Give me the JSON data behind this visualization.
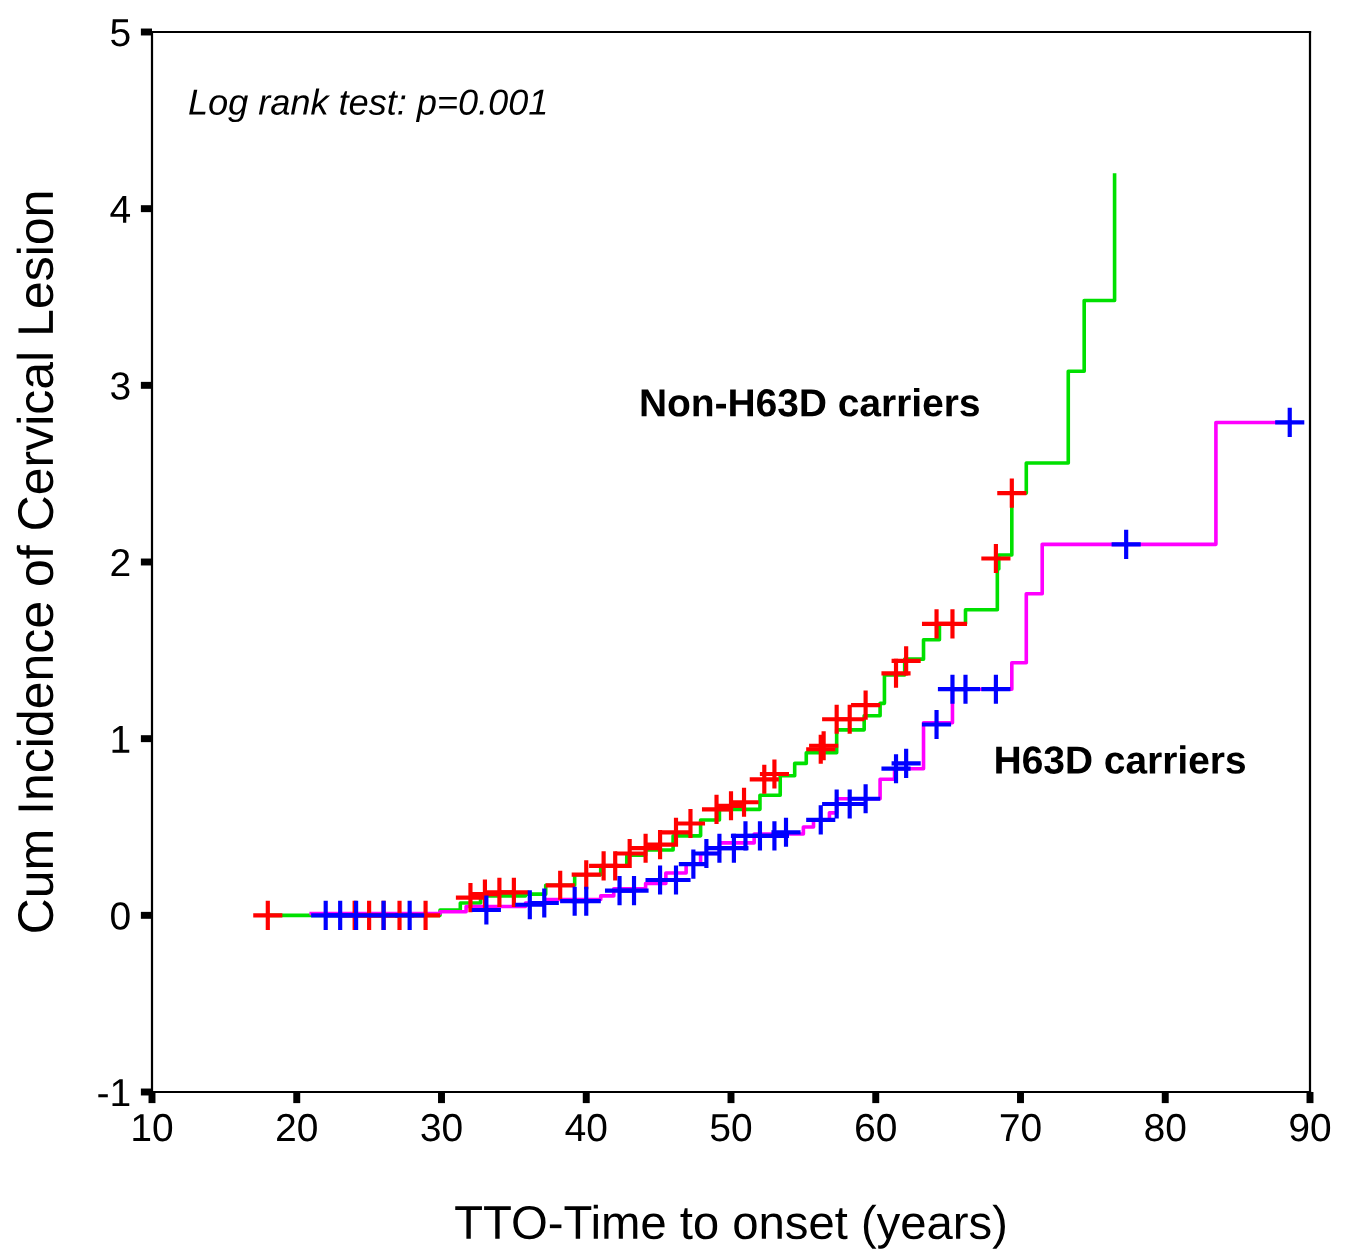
{
  "chart_data": {
    "type": "step",
    "xlabel": "TTO-Time to onset (years)",
    "ylabel": "Cum Incidence of Cervical Lesion",
    "xlim": [
      10,
      90
    ],
    "xticks": [
      10,
      20,
      30,
      40,
      50,
      60,
      70,
      80,
      90
    ],
    "ylim": [
      -1,
      5
    ],
    "yticks": [
      -1,
      0,
      1,
      2,
      3,
      4,
      5
    ],
    "grid": false,
    "legend": false,
    "annotations": [
      "Log rank test: p=0.001"
    ],
    "series": [
      {
        "type": "step",
        "name": "Non-H63D carriers",
        "color": "#00e000",
        "marker": "none",
        "x": [
          18,
          29.9,
          31.3,
          32.7,
          35.8,
          37.2,
          39.2,
          41,
          42.8,
          44.1,
          46,
          47.9,
          49.2,
          52,
          53.4,
          54.4,
          55.2,
          57.3,
          59.2,
          60.3,
          60.6,
          62,
          63.3,
          64.4,
          66.2,
          68.4,
          68.5,
          69.4,
          70.4,
          73.3,
          74.4,
          76.5
        ],
        "values": [
          0,
          0.03,
          0.07,
          0.11,
          0.12,
          0.17,
          0.23,
          0.28,
          0.34,
          0.37,
          0.45,
          0.54,
          0.6,
          0.68,
          0.79,
          0.86,
          0.92,
          1.05,
          1.13,
          1.2,
          1.36,
          1.45,
          1.56,
          1.65,
          1.73,
          1.96,
          2.04,
          2.39,
          2.56,
          3.08,
          3.48,
          4.19
        ]
      },
      {
        "type": "step",
        "name": "H63D carriers",
        "color": "#ff00ff",
        "marker": "none",
        "x": [
          21,
          29.9,
          31.7,
          35.8,
          37.2,
          41,
          41.9,
          44.1,
          45.5,
          46.9,
          47.9,
          49.2,
          51.6,
          55,
          55.7,
          56.8,
          57.3,
          60.3,
          61.3,
          63.3,
          65.3,
          69.4,
          70.4,
          71.5,
          83.5,
          88.6
        ],
        "values": [
          0.01,
          0.02,
          0.05,
          0.07,
          0.09,
          0.11,
          0.15,
          0.18,
          0.24,
          0.29,
          0.35,
          0.41,
          0.46,
          0.5,
          0.54,
          0.58,
          0.66,
          0.77,
          0.83,
          1.09,
          1.28,
          1.43,
          1.82,
          2.1,
          2.79,
          2.79
        ]
      },
      {
        "type": "scatter",
        "color": "#ff0000",
        "marker": "cross",
        "x": [
          18,
          24,
          25,
          26,
          27.1,
          28.9,
          32,
          33,
          34,
          35,
          38.2,
          40,
          41.2,
          42,
          43,
          44.1,
          45.1,
          46.2,
          47.2,
          49,
          50,
          50.9,
          52.3,
          53,
          56.2,
          56.4,
          57.3,
          58.2,
          59.3,
          61.4,
          62.1,
          64.2,
          65.3,
          68.3,
          69.4
        ],
        "values": [
          0,
          0,
          0,
          0,
          0,
          0,
          0.1,
          0.12,
          0.13,
          0.13,
          0.17,
          0.23,
          0.28,
          0.28,
          0.35,
          0.38,
          0.4,
          0.47,
          0.52,
          0.6,
          0.62,
          0.64,
          0.77,
          0.8,
          0.94,
          0.96,
          1.11,
          1.11,
          1.19,
          1.37,
          1.44,
          1.65,
          1.65,
          2.02,
          2.39
        ]
      },
      {
        "type": "scatter",
        "color": "#0000ff",
        "marker": "cross",
        "x": [
          22,
          23,
          24.1,
          26,
          27.8,
          33.1,
          36.1,
          37.1,
          39.2,
          40,
          42.3,
          43.3,
          45.1,
          46.2,
          47.4,
          48.3,
          49.2,
          50.2,
          51,
          52,
          53,
          53.8,
          56.2,
          57.3,
          58.2,
          59.3,
          61.4,
          62.1,
          64.2,
          65.3,
          66.2,
          68.3,
          77.3,
          88.6
        ],
        "values": [
          0,
          0,
          0,
          0,
          0,
          0.03,
          0.06,
          0.07,
          0.08,
          0.08,
          0.14,
          0.14,
          0.2,
          0.2,
          0.29,
          0.35,
          0.38,
          0.38,
          0.45,
          0.45,
          0.45,
          0.47,
          0.54,
          0.63,
          0.63,
          0.66,
          0.83,
          0.86,
          1.08,
          1.28,
          1.28,
          1.28,
          2.1,
          2.79
        ]
      }
    ]
  }
}
